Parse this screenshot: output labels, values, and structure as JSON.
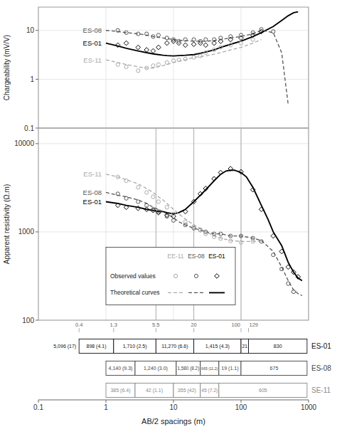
{
  "chart_data": [
    {
      "type": "line",
      "ylabel": "Chargeability (mV/V)",
      "log": true,
      "xlim": [
        0.1,
        1000
      ],
      "xticks": [
        0.1,
        1,
        10,
        100,
        1000
      ],
      "ylim": [
        0.1,
        30
      ],
      "yticks": [
        0.1,
        1,
        10
      ],
      "grid": true,
      "tick_labels": "y",
      "series": [
        {
          "name": "ES-01",
          "type": "line",
          "line_style": "solid",
          "color": "#000000",
          "x": [
            1,
            1.5,
            2,
            3,
            4,
            5,
            6,
            7,
            8,
            10,
            12,
            15,
            20,
            25,
            30,
            40,
            50,
            70,
            100,
            150,
            200,
            300,
            400,
            500,
            600,
            700
          ],
          "values": [
            5.5,
            4.8,
            4.3,
            3.8,
            3.5,
            3.3,
            3.2,
            3.1,
            3.05,
            3.0,
            3.05,
            3.1,
            3.2,
            3.4,
            3.6,
            4.0,
            4.5,
            5.2,
            6.0,
            7.5,
            9.0,
            12.0,
            16.0,
            20.0,
            23.0,
            24.0
          ]
        },
        {
          "name": "ES-08",
          "type": "line",
          "line_style": "dashed",
          "color": "#555555",
          "x": [
            1,
            1.5,
            2,
            3,
            4,
            5,
            6,
            7,
            8,
            10,
            12,
            15,
            20,
            25,
            30,
            40,
            50,
            70,
            100,
            150,
            200,
            300,
            400,
            500
          ],
          "values": [
            10,
            9.5,
            9.0,
            8.5,
            8.0,
            7.5,
            7.2,
            7.0,
            6.8,
            6.5,
            6.3,
            6.2,
            6.0,
            6.0,
            6.0,
            6.2,
            6.5,
            7.0,
            7.5,
            8.5,
            10.0,
            9.0,
            3.5,
            0.3
          ]
        },
        {
          "name": "ES-11",
          "type": "line",
          "line_style": "dashed",
          "color": "#aaaaaa",
          "x": [
            1,
            1.5,
            2,
            3,
            4,
            5,
            6,
            8,
            10,
            15,
            20,
            30,
            50,
            70,
            100,
            150,
            200
          ],
          "values": [
            2.5,
            2.2,
            2.0,
            1.8,
            1.7,
            1.7,
            1.8,
            2.0,
            2.2,
            2.5,
            2.8,
            3.0,
            3.5,
            4.0,
            4.5,
            5.5,
            6.5
          ]
        },
        {
          "type": "scatter",
          "marker": "diamond",
          "color": "#000000",
          "x": [
            1.5,
            2,
            3,
            4,
            5,
            6,
            8,
            10,
            12,
            15,
            20,
            25,
            30,
            40,
            50,
            70,
            100,
            150,
            200
          ],
          "values": [
            5.0,
            5.5,
            4.5,
            4.0,
            3.8,
            4.5,
            5.5,
            6.0,
            5.5,
            5.0,
            5.2,
            5.5,
            5.0,
            5.5,
            6.0,
            6.5,
            7.0,
            8.0,
            9.5
          ]
        },
        {
          "type": "scatter",
          "marker": "circle",
          "color": "#555555",
          "x": [
            1.5,
            2,
            3,
            4,
            5,
            6,
            8,
            10,
            12,
            15,
            20,
            25,
            30,
            40,
            50,
            70,
            100,
            150,
            200,
            300
          ],
          "values": [
            10.0,
            9.0,
            8.5,
            8.5,
            7.5,
            8.0,
            7.0,
            6.5,
            6.0,
            6.5,
            6.5,
            6.0,
            6.5,
            6.5,
            7.0,
            7.5,
            8.0,
            9.0,
            10.5,
            9.5
          ]
        },
        {
          "type": "scatter",
          "marker": "circle",
          "color": "#aaaaaa",
          "x": [
            1.5,
            2,
            3,
            4,
            5,
            6,
            8,
            10,
            12,
            15,
            20,
            25,
            30,
            40,
            50,
            70,
            100,
            150
          ],
          "values": [
            2.0,
            1.8,
            1.5,
            1.7,
            1.9,
            2.0,
            2.2,
            2.4,
            2.5,
            2.6,
            2.8,
            3.0,
            3.5,
            4.0,
            4.5,
            5.0,
            5.5,
            6.5
          ]
        }
      ]
    },
    {
      "type": "line",
      "ylabel": "Apparent resistivity (Ω.m)",
      "log": true,
      "xlim": [
        0.1,
        1000
      ],
      "xticks": [
        0.1,
        1,
        10,
        100,
        1000
      ],
      "ylim": [
        100,
        15000
      ],
      "yticks": [
        100,
        1000,
        10000
      ],
      "grid": true,
      "tick_labels": "y",
      "vlines": [
        5.5,
        20,
        100
      ],
      "annotations": [
        "EE-11",
        "ES-08",
        "ES-01",
        "Observed values",
        "Theoretical curves"
      ],
      "series": [
        {
          "name": "ES-01",
          "type": "line",
          "line_style": "solid",
          "color": "#000000",
          "x": [
            1,
            1.5,
            2,
            3,
            4,
            5,
            6,
            7,
            8,
            10,
            12,
            15,
            20,
            25,
            30,
            40,
            50,
            60,
            70,
            80,
            100,
            120,
            150,
            200,
            250,
            300,
            400,
            500,
            600,
            700,
            800
          ],
          "values": [
            2200,
            2100,
            2000,
            1900,
            1800,
            1750,
            1700,
            1700,
            1650,
            1600,
            1650,
            1800,
            2200,
            2600,
            3000,
            3800,
            4500,
            4900,
            5000,
            5000,
            4700,
            4200,
            3200,
            2000,
            1400,
            1000,
            700,
            450,
            350,
            300,
            280
          ]
        },
        {
          "name": "ES-08",
          "type": "line",
          "line_style": "dashed",
          "color": "#555555",
          "x": [
            1,
            1.5,
            2,
            3,
            4,
            5,
            6,
            7,
            8,
            10,
            12,
            15,
            20,
            25,
            30,
            40,
            50,
            70,
            100,
            150,
            200,
            300,
            400,
            500,
            600,
            700,
            800
          ],
          "values": [
            2800,
            2600,
            2500,
            2300,
            2100,
            1900,
            1800,
            1700,
            1600,
            1450,
            1300,
            1200,
            1100,
            1050,
            1000,
            950,
            950,
            900,
            900,
            850,
            800,
            600,
            400,
            280,
            220,
            200,
            190
          ]
        },
        {
          "name": "ES-11",
          "type": "line",
          "line_style": "dashed",
          "color": "#aaaaaa",
          "x": [
            1,
            1.5,
            2,
            3,
            4,
            5,
            6,
            7,
            8,
            10,
            12,
            15,
            20,
            25,
            30,
            40,
            50,
            70,
            100,
            150,
            200
          ],
          "values": [
            4500,
            4200,
            3900,
            3500,
            3100,
            2800,
            2500,
            2300,
            2100,
            1800,
            1600,
            1400,
            1200,
            1100,
            1000,
            900,
            850,
            800,
            780,
            780,
            790
          ]
        },
        {
          "type": "scatter",
          "marker": "diamond",
          "color": "#000000",
          "x": [
            1.5,
            2,
            3,
            4,
            5,
            6,
            8,
            10,
            15,
            20,
            25,
            30,
            40,
            50,
            70,
            100,
            150,
            200,
            300,
            400,
            500,
            600,
            700
          ],
          "values": [
            2000,
            1900,
            1850,
            1800,
            1750,
            1650,
            1550,
            1500,
            1700,
            2200,
            2700,
            3100,
            4000,
            4700,
            5200,
            4800,
            3000,
            1800,
            900,
            600,
            400,
            350,
            310
          ]
        },
        {
          "type": "scatter",
          "marker": "circle",
          "color": "#555555",
          "x": [
            1.5,
            2,
            3,
            4,
            5,
            6,
            8,
            10,
            15,
            20,
            25,
            30,
            40,
            50,
            70,
            100,
            150,
            200,
            300,
            400,
            500,
            600
          ],
          "values": [
            2700,
            2400,
            2200,
            2000,
            1800,
            1700,
            1500,
            1350,
            1200,
            1100,
            1050,
            1000,
            950,
            950,
            900,
            900,
            850,
            780,
            550,
            380,
            260,
            210
          ]
        },
        {
          "type": "scatter",
          "marker": "circle",
          "color": "#aaaaaa",
          "x": [
            1.5,
            2,
            3,
            4,
            5,
            6,
            8,
            10,
            15,
            20,
            25,
            30,
            40,
            50,
            70,
            100,
            150
          ],
          "values": [
            4200,
            3800,
            3200,
            2800,
            2500,
            2200,
            1900,
            1600,
            1300,
            1150,
            1050,
            950,
            880,
            840,
            790,
            760,
            780
          ]
        }
      ]
    },
    {
      "type": "layers",
      "xlabel": "AB/2 spacings (m)",
      "log": "x",
      "xlim": [
        0.1,
        1000
      ],
      "xticks": [
        0.1,
        1,
        10,
        100,
        1000
      ],
      "grid": false,
      "tick_labels": "x",
      "boundaries": [
        0.4,
        1.3,
        5.5,
        20,
        100,
        129
      ],
      "annotations": [
        "5,096 (17)"
      ],
      "rows": [
        {
          "name": "ES-01",
          "color": "#111111",
          "layers": [
            {
              "label": "898 (4.1)",
              "x_start": 0.4,
              "x_end": 1.3
            },
            {
              "label": "1,710 (2.5)",
              "x_start": 1.3,
              "x_end": 5.5
            },
            {
              "label": "11,270 (6.6)",
              "x_start": 5.5,
              "x_end": 20
            },
            {
              "label": "1,415 (4.3)",
              "x_start": 20,
              "x_end": 100
            },
            {
              "label": "21",
              "x_start": 100,
              "x_end": 129
            },
            {
              "label": "830",
              "x_start": 129,
              "x_end": 950
            }
          ]
        },
        {
          "name": "ES-08",
          "color": "#444444",
          "layers": [
            {
              "label": "4,140 (9.3)",
              "x_start": 1,
              "x_end": 2.7
            },
            {
              "label": "1,240 (3.0)",
              "x_start": 2.7,
              "x_end": 11
            },
            {
              "label": "1,580 (8.2)",
              "x_start": 11,
              "x_end": 25
            },
            {
              "label": "665 (11.2)",
              "x_start": 25,
              "x_end": 47
            },
            {
              "label": "19 (1.1)",
              "x_start": 47,
              "x_end": 100
            },
            {
              "label": "675",
              "x_start": 100,
              "x_end": 950
            }
          ]
        },
        {
          "name": "SE-11",
          "color": "#888888",
          "layers": [
            {
              "label": "385 (6.4)",
              "x_start": 1,
              "x_end": 2.7
            },
            {
              "label": "42 (1.1)",
              "x_start": 2.7,
              "x_end": 10
            },
            {
              "label": "355 (42)",
              "x_start": 10,
              "x_end": 25
            },
            {
              "label": "45 (7.2)",
              "x_start": 25,
              "x_end": 47
            },
            {
              "label": "605",
              "x_start": 47,
              "x_end": 950
            }
          ]
        }
      ]
    }
  ]
}
